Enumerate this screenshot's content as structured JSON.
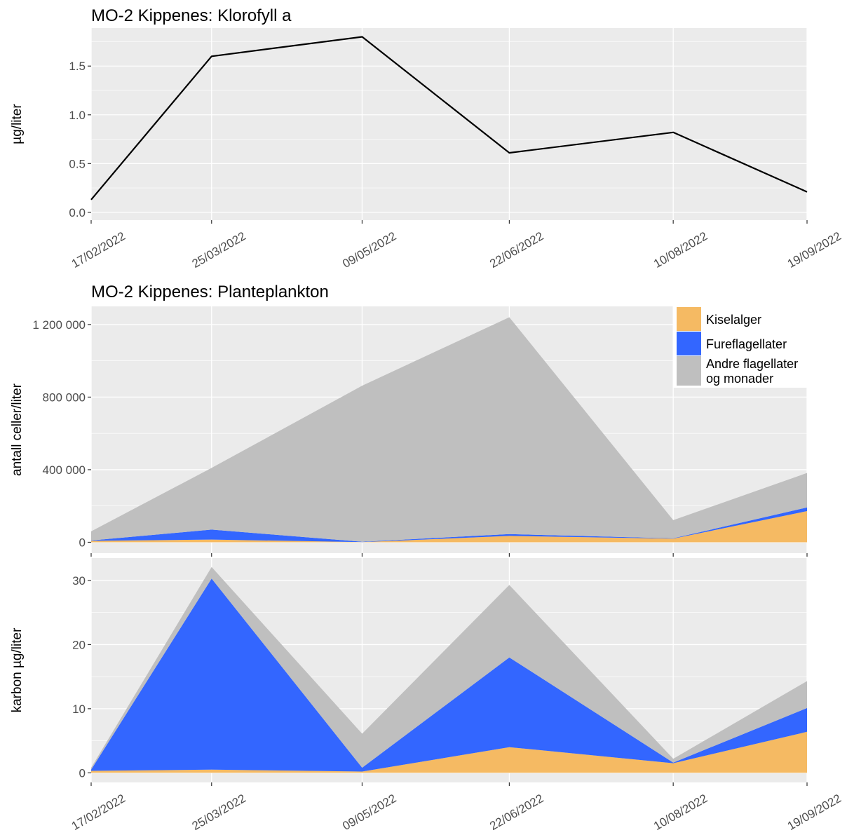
{
  "chart_data": [
    {
      "type": "line",
      "title": "MO-2 Kippenes: Klorofyll a",
      "ylabel": "µg/liter",
      "xlabel": "",
      "x": [
        "2022-02-17",
        "2022-03-25",
        "2022-05-09",
        "2022-06-22",
        "2022-08-10",
        "2022-09-19"
      ],
      "x_tick_labels": [
        "17/02/2022",
        "25/03/2022",
        "09/05/2022",
        "22/06/2022",
        "10/08/2022",
        "19/09/2022"
      ],
      "y_ticks": [
        0.0,
        0.5,
        1.0,
        1.5
      ],
      "y_tick_labels": [
        "0.0",
        "0.5",
        "1.0",
        "1.5"
      ],
      "ylim": [
        -0.08,
        1.89
      ],
      "series": [
        {
          "values": [
            0.13,
            1.6,
            1.8,
            0.61,
            0.82,
            0.21
          ],
          "color": "#000000"
        }
      ],
      "grid": true
    },
    {
      "type": "area",
      "stacked": true,
      "title": "MO-2 Kippenes: Planteplankton",
      "ylabel": "antall celler/liter",
      "xlabel": "",
      "x": [
        "2022-02-17",
        "2022-03-25",
        "2022-05-09",
        "2022-06-22",
        "2022-08-10",
        "2022-09-19"
      ],
      "y_ticks": [
        0,
        400000,
        800000,
        1200000
      ],
      "y_tick_labels": [
        "0",
        "400 000",
        "800 000",
        "1 200 000"
      ],
      "ylim": [
        -60000,
        1300000
      ],
      "series": [
        {
          "name": "Kiselalger",
          "values": [
            8000,
            15000,
            1000,
            35000,
            20000,
            172000
          ],
          "color": "#F5BA63"
        },
        {
          "name": "Fureflagellater",
          "values": [
            2000,
            55000,
            2000,
            10000,
            2000,
            20000
          ],
          "color": "#3366FF"
        },
        {
          "name": "Andre flagellater og monader",
          "values": [
            50000,
            340000,
            860000,
            1195000,
            100000,
            190000
          ],
          "color": "#BFBFBF"
        }
      ],
      "legend": {
        "position": "top-right",
        "items": [
          "Kiselalger",
          "Fureflagellater",
          "Andre flagellater",
          "og monader"
        ]
      },
      "grid": true
    },
    {
      "type": "area",
      "stacked": true,
      "title": "",
      "ylabel": "karbon µg/liter",
      "xlabel": "",
      "x": [
        "2022-02-17",
        "2022-03-25",
        "2022-05-09",
        "2022-06-22",
        "2022-08-10",
        "2022-09-19"
      ],
      "x_tick_labels": [
        "17/02/2022",
        "25/03/2022",
        "09/05/2022",
        "22/06/2022",
        "10/08/2022",
        "19/09/2022"
      ],
      "y_ticks": [
        0,
        10,
        20,
        30
      ],
      "y_tick_labels": [
        "0",
        "10",
        "20",
        "30"
      ],
      "ylim": [
        -1.5,
        33.5
      ],
      "series": [
        {
          "name": "Kiselalger",
          "values": [
            0.3,
            0.5,
            0.2,
            4.0,
            1.5,
            6.4
          ],
          "color": "#F5BA63"
        },
        {
          "name": "Fureflagellater",
          "values": [
            0.2,
            29.8,
            0.6,
            14.0,
            0.1,
            3.7
          ],
          "color": "#3366FF"
        },
        {
          "name": "Andre flagellater og monader",
          "values": [
            0.3,
            1.8,
            5.3,
            11.3,
            0.6,
            4.2
          ],
          "color": "#BFBFBF"
        }
      ],
      "grid": true
    }
  ]
}
